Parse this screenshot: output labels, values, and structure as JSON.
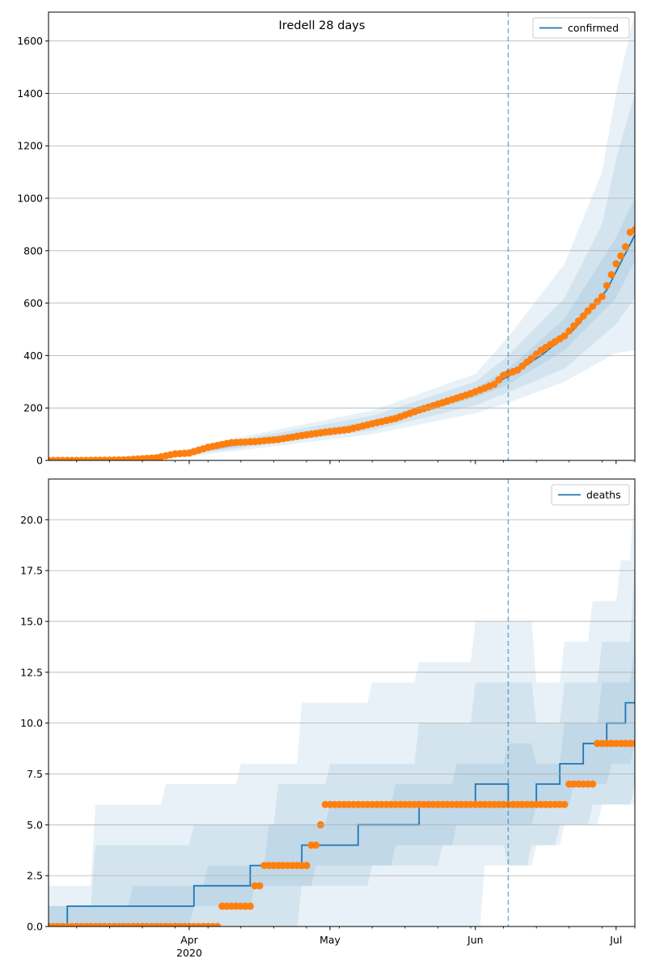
{
  "figure": {
    "title": "Iredell 28 days"
  },
  "colors": {
    "model": "#1f77b4",
    "observed": "#ff7f0e",
    "band": "#1f77b4",
    "grid": "#b0b0b0",
    "vline": "#1f77b4"
  },
  "chart_data": [
    {
      "type": "line",
      "name": "confirmed",
      "title": "Iredell 28 days",
      "xlabel": "",
      "ylabel": "",
      "x_range": [
        "2020-03-02",
        "2020-07-05"
      ],
      "ylim": [
        0,
        1710
      ],
      "yticks": [
        0,
        200,
        400,
        600,
        800,
        1000,
        1200,
        1400,
        1600
      ],
      "ytick_labels": [
        "0",
        "200",
        "400",
        "600",
        "800",
        "1000",
        "1200",
        "1400",
        "1600"
      ],
      "grid": "horizontal",
      "legend_position": "top-right",
      "forecast_start": "2020-06-08",
      "series": [
        {
          "name": "confirmed",
          "kind": "line",
          "points": [
            [
              "2020-03-02",
              0
            ],
            [
              "2020-03-10",
              1
            ],
            [
              "2020-03-18",
              3
            ],
            [
              "2020-03-25",
              12
            ],
            [
              "2020-04-01",
              30
            ],
            [
              "2020-04-08",
              52
            ],
            [
              "2020-04-15",
              72
            ],
            [
              "2020-04-22",
              88
            ],
            [
              "2020-04-29",
              105
            ],
            [
              "2020-05-06",
              130
            ],
            [
              "2020-05-13",
              155
            ],
            [
              "2020-05-20",
              185
            ],
            [
              "2020-05-27",
              225
            ],
            [
              "2020-06-03",
              275
            ],
            [
              "2020-06-08",
              320
            ],
            [
              "2020-06-15",
              400
            ],
            [
              "2020-06-22",
              500
            ],
            [
              "2020-06-29",
              650
            ],
            [
              "2020-07-05",
              860
            ]
          ]
        },
        {
          "kind": "band",
          "level": "outer",
          "lower": [
            [
              "2020-03-02",
              0
            ],
            [
              "2020-03-25",
              2
            ],
            [
              "2020-04-15",
              45
            ],
            [
              "2020-05-10",
              100
            ],
            [
              "2020-06-01",
              180
            ],
            [
              "2020-06-08",
              220
            ],
            [
              "2020-06-20",
              300
            ],
            [
              "2020-07-01",
              410
            ],
            [
              "2020-07-05",
              420
            ]
          ],
          "upper": [
            [
              "2020-03-02",
              2
            ],
            [
              "2020-03-25",
              20
            ],
            [
              "2020-04-15",
              100
            ],
            [
              "2020-05-10",
              190
            ],
            [
              "2020-06-01",
              330
            ],
            [
              "2020-06-08",
              470
            ],
            [
              "2020-06-20",
              750
            ],
            [
              "2020-06-28",
              1100
            ],
            [
              "2020-07-01",
              1400
            ],
            [
              "2020-07-05",
              1710
            ]
          ]
        },
        {
          "kind": "band",
          "level": "middle",
          "lower": [
            [
              "2020-03-02",
              0
            ],
            [
              "2020-03-25",
              5
            ],
            [
              "2020-04-15",
              55
            ],
            [
              "2020-05-10",
              115
            ],
            [
              "2020-06-01",
              210
            ],
            [
              "2020-06-08",
              260
            ],
            [
              "2020-06-20",
              350
            ],
            [
              "2020-07-01",
              520
            ],
            [
              "2020-07-05",
              620
            ]
          ],
          "upper": [
            [
              "2020-03-02",
              1
            ],
            [
              "2020-03-25",
              16
            ],
            [
              "2020-04-15",
              90
            ],
            [
              "2020-05-10",
              170
            ],
            [
              "2020-06-01",
              300
            ],
            [
              "2020-06-08",
              400
            ],
            [
              "2020-06-20",
              620
            ],
            [
              "2020-06-28",
              900
            ],
            [
              "2020-07-01",
              1150
            ],
            [
              "2020-07-05",
              1400
            ]
          ]
        },
        {
          "kind": "band",
          "level": "inner",
          "lower": [
            [
              "2020-03-02",
              0
            ],
            [
              "2020-03-25",
              8
            ],
            [
              "2020-04-15",
              62
            ],
            [
              "2020-05-10",
              128
            ],
            [
              "2020-06-01",
              240
            ],
            [
              "2020-06-08",
              290
            ],
            [
              "2020-06-20",
              420
            ],
            [
              "2020-07-01",
              620
            ],
            [
              "2020-07-05",
              760
            ]
          ],
          "upper": [
            [
              "2020-03-02",
              1
            ],
            [
              "2020-03-25",
              14
            ],
            [
              "2020-04-15",
              82
            ],
            [
              "2020-05-10",
              150
            ],
            [
              "2020-06-01",
              275
            ],
            [
              "2020-06-08",
              350
            ],
            [
              "2020-06-20",
              540
            ],
            [
              "2020-07-01",
              850
            ],
            [
              "2020-07-05",
              1000
            ]
          ]
        },
        {
          "kind": "scatter",
          "points": [
            [
              "2020-03-02",
              0
            ],
            [
              "2020-03-10",
              0
            ],
            [
              "2020-03-18",
              2
            ],
            [
              "2020-03-25",
              10
            ],
            [
              "2020-03-29",
              25
            ],
            [
              "2020-04-01",
              28
            ],
            [
              "2020-04-05",
              50
            ],
            [
              "2020-04-10",
              68
            ],
            [
              "2020-04-15",
              72
            ],
            [
              "2020-04-20",
              80
            ],
            [
              "2020-04-25",
              95
            ],
            [
              "2020-04-30",
              108
            ],
            [
              "2020-05-05",
              118
            ],
            [
              "2020-05-10",
              140
            ],
            [
              "2020-05-15",
              160
            ],
            [
              "2020-05-20",
              192
            ],
            [
              "2020-05-25",
              220
            ],
            [
              "2020-05-31",
              255
            ],
            [
              "2020-06-05",
              290
            ],
            [
              "2020-06-07",
              325
            ],
            [
              "2020-06-10",
              345
            ],
            [
              "2020-06-15",
              420
            ],
            [
              "2020-06-20",
              475
            ],
            [
              "2020-06-25",
              570
            ],
            [
              "2020-06-28",
              625
            ],
            [
              "2020-07-01",
              750
            ],
            [
              "2020-07-02",
              780
            ],
            [
              "2020-07-03",
              815
            ],
            [
              "2020-07-04",
              870
            ],
            [
              "2020-07-05",
              880
            ]
          ]
        }
      ]
    },
    {
      "type": "line",
      "name": "deaths",
      "title": "",
      "xlabel": "",
      "ylabel": "",
      "x_range": [
        "2020-03-02",
        "2020-07-05"
      ],
      "ylim": [
        0,
        22
      ],
      "yticks": [
        0,
        2.5,
        5,
        7.5,
        10,
        12.5,
        15,
        17.5,
        20
      ],
      "ytick_labels": [
        "0.0",
        "2.5",
        "5.0",
        "7.5",
        "10.0",
        "12.5",
        "15.0",
        "17.5",
        "20.0"
      ],
      "xticks": [
        "2020-04-01",
        "2020-05-01",
        "2020-06-01",
        "2020-07-01"
      ],
      "xtick_labels": [
        "Apr",
        "May",
        "Jun",
        "Jul"
      ],
      "xtick_sublabel": "2020",
      "grid": "horizontal",
      "legend_position": "top-right",
      "forecast_start": "2020-06-08",
      "series": [
        {
          "name": "deaths",
          "kind": "step",
          "points": [
            [
              "2020-03-02",
              0
            ],
            [
              "2020-03-06",
              1
            ],
            [
              "2020-04-02",
              2
            ],
            [
              "2020-04-14",
              3
            ],
            [
              "2020-04-25",
              4
            ],
            [
              "2020-05-07",
              5
            ],
            [
              "2020-05-20",
              6
            ],
            [
              "2020-06-01",
              7
            ],
            [
              "2020-06-08",
              6
            ],
            [
              "2020-06-14",
              7
            ],
            [
              "2020-06-19",
              8
            ],
            [
              "2020-06-24",
              9
            ],
            [
              "2020-06-29",
              10
            ],
            [
              "2020-07-03",
              11
            ],
            [
              "2020-07-05",
              11
            ]
          ]
        },
        {
          "kind": "band",
          "level": "outer",
          "lower": [
            [
              "2020-03-02",
              0
            ],
            [
              "2020-05-27",
              0
            ],
            [
              "2020-06-03",
              3
            ],
            [
              "2020-06-08",
              3
            ],
            [
              "2020-06-13",
              4
            ],
            [
              "2020-06-19",
              5
            ],
            [
              "2020-06-26",
              6
            ],
            [
              "2020-07-05",
              6
            ]
          ],
          "upper": [
            [
              "2020-03-02",
              2
            ],
            [
              "2020-03-12",
              6
            ],
            [
              "2020-03-27",
              7
            ],
            [
              "2020-04-12",
              8
            ],
            [
              "2020-04-25",
              11
            ],
            [
              "2020-05-10",
              12
            ],
            [
              "2020-05-20",
              13
            ],
            [
              "2020-06-01",
              15
            ],
            [
              "2020-06-08",
              15
            ],
            [
              "2020-06-14",
              12
            ],
            [
              "2020-06-20",
              14
            ],
            [
              "2020-06-26",
              16
            ],
            [
              "2020-07-02",
              18
            ],
            [
              "2020-07-05",
              22
            ]
          ]
        },
        {
          "kind": "band",
          "level": "middle",
          "lower": [
            [
              "2020-03-02",
              0
            ],
            [
              "2020-04-15",
              0
            ],
            [
              "2020-04-25",
              2
            ],
            [
              "2020-05-10",
              3
            ],
            [
              "2020-05-25",
              4
            ],
            [
              "2020-06-08",
              3
            ],
            [
              "2020-06-14",
              4
            ],
            [
              "2020-06-20",
              5
            ],
            [
              "2020-06-28",
              6
            ],
            [
              "2020-07-05",
              7
            ]
          ],
          "upper": [
            [
              "2020-03-02",
              1
            ],
            [
              "2020-03-12",
              4
            ],
            [
              "2020-04-02",
              5
            ],
            [
              "2020-04-20",
              7
            ],
            [
              "2020-05-01",
              8
            ],
            [
              "2020-05-20",
              10
            ],
            [
              "2020-06-01",
              12
            ],
            [
              "2020-06-08",
              12
            ],
            [
              "2020-06-14",
              10
            ],
            [
              "2020-06-20",
              12
            ],
            [
              "2020-06-28",
              14
            ],
            [
              "2020-07-05",
              18
            ]
          ]
        },
        {
          "kind": "band",
          "level": "inner",
          "lower": [
            [
              "2020-03-02",
              0
            ],
            [
              "2020-04-02",
              1
            ],
            [
              "2020-04-15",
              2
            ],
            [
              "2020-04-28",
              3
            ],
            [
              "2020-05-15",
              4
            ],
            [
              "2020-05-28",
              5
            ],
            [
              "2020-06-08",
              5
            ],
            [
              "2020-06-14",
              6
            ],
            [
              "2020-06-22",
              7
            ],
            [
              "2020-06-30",
              8
            ],
            [
              "2020-07-05",
              9
            ]
          ],
          "upper": [
            [
              "2020-03-02",
              1
            ],
            [
              "2020-03-20",
              2
            ],
            [
              "2020-04-05",
              3
            ],
            [
              "2020-04-18",
              5
            ],
            [
              "2020-05-01",
              6
            ],
            [
              "2020-05-15",
              7
            ],
            [
              "2020-05-28",
              8
            ],
            [
              "2020-06-08",
              9
            ],
            [
              "2020-06-14",
              8
            ],
            [
              "2020-06-20",
              10
            ],
            [
              "2020-06-28",
              12
            ],
            [
              "2020-07-05",
              14
            ]
          ]
        },
        {
          "kind": "scatter",
          "points": [
            [
              "2020-03-02",
              0
            ],
            [
              "2020-04-07",
              0
            ],
            [
              "2020-04-08",
              1
            ],
            [
              "2020-04-14",
              1
            ],
            [
              "2020-04-15",
              2
            ],
            [
              "2020-04-16",
              2
            ],
            [
              "2020-04-17",
              3
            ],
            [
              "2020-04-26",
              3
            ],
            [
              "2020-04-27",
              4
            ],
            [
              "2020-04-28",
              4
            ],
            [
              "2020-04-29",
              5
            ],
            [
              "2020-04-30",
              6
            ],
            [
              "2020-06-20",
              6
            ],
            [
              "2020-06-21",
              7
            ],
            [
              "2020-06-26",
              7
            ],
            [
              "2020-06-27",
              9
            ],
            [
              "2020-07-05",
              9
            ]
          ]
        }
      ]
    }
  ]
}
